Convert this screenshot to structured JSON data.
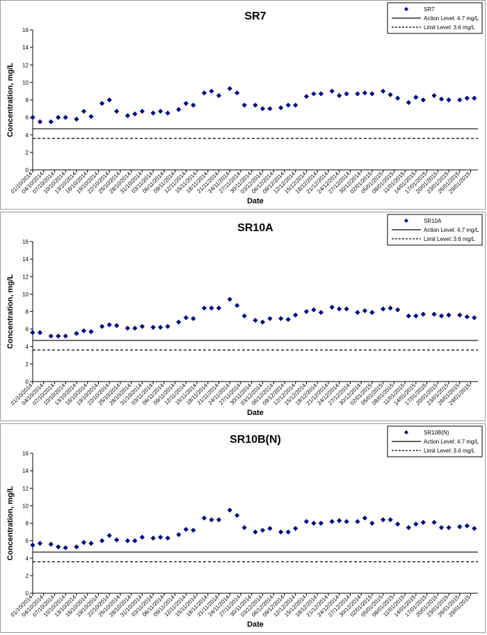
{
  "chart_data": [
    {
      "type": "scatter",
      "title": "SR7",
      "xlabel": "Date",
      "ylabel": "Concentration, mg/L",
      "ylim": [
        0,
        16
      ],
      "yticks": [
        "0",
        "2",
        "4",
        "6",
        "8",
        "10",
        "12",
        "14",
        "16"
      ],
      "xtick_labels": [
        "01/10/2014",
        "04/10/2014",
        "07/10/2014",
        "10/10/2014",
        "13/10/2014",
        "16/10/2014",
        "19/10/2014",
        "22/10/2014",
        "25/10/2014",
        "28/10/2014",
        "31/10/2014",
        "03/11/2014",
        "06/11/2014",
        "09/11/2014",
        "12/11/2014",
        "15/11/2014",
        "18/11/2014",
        "21/11/2014",
        "24/11/2014",
        "27/11/2014",
        "30/11/2014",
        "03/12/2014",
        "06/12/2014",
        "09/12/2014",
        "12/12/2014",
        "15/12/2014",
        "18/12/2014",
        "21/12/2014",
        "24/12/2014",
        "27/12/2014",
        "30/12/2014",
        "02/01/2015",
        "05/01/2015",
        "08/01/2015",
        "11/01/2015",
        "14/01/2015",
        "17/01/2015",
        "20/01/2015",
        "23/01/2015",
        "26/01/2015",
        "29/01/2015"
      ],
      "points": [
        [
          "01/10/2014",
          6.0
        ],
        [
          "03/10/2014",
          5.5
        ],
        [
          "06/10/2014",
          5.5
        ],
        [
          "08/10/2014",
          6.0
        ],
        [
          "10/10/2014",
          6.0
        ],
        [
          "13/10/2014",
          5.8
        ],
        [
          "15/10/2014",
          6.7
        ],
        [
          "17/10/2014",
          6.1
        ],
        [
          "20/10/2014",
          7.6
        ],
        [
          "22/10/2014",
          8.0
        ],
        [
          "24/10/2014",
          6.7
        ],
        [
          "27/10/2014",
          6.2
        ],
        [
          "29/10/2014",
          6.4
        ],
        [
          "31/10/2014",
          6.7
        ],
        [
          "03/11/2014",
          6.5
        ],
        [
          "05/11/2014",
          6.7
        ],
        [
          "07/11/2014",
          6.5
        ],
        [
          "10/11/2014",
          6.9
        ],
        [
          "12/11/2014",
          7.6
        ],
        [
          "14/11/2014",
          7.4
        ],
        [
          "17/11/2014",
          8.8
        ],
        [
          "19/11/2014",
          9.0
        ],
        [
          "21/11/2014",
          8.5
        ],
        [
          "24/11/2014",
          9.3
        ],
        [
          "26/11/2014",
          8.8
        ],
        [
          "28/11/2014",
          7.4
        ],
        [
          "01/12/2014",
          7.4
        ],
        [
          "03/12/2014",
          7.0
        ],
        [
          "05/12/2014",
          7.0
        ],
        [
          "08/12/2014",
          7.1
        ],
        [
          "10/12/2014",
          7.4
        ],
        [
          "12/12/2014",
          7.4
        ],
        [
          "15/12/2014",
          8.4
        ],
        [
          "17/12/2014",
          8.7
        ],
        [
          "19/12/2014",
          8.7
        ],
        [
          "22/12/2014",
          9.0
        ],
        [
          "24/12/2014",
          8.5
        ],
        [
          "26/12/2014",
          8.7
        ],
        [
          "29/12/2014",
          8.7
        ],
        [
          "31/12/2014",
          8.8
        ],
        [
          "02/01/2015",
          8.7
        ],
        [
          "05/01/2015",
          9.0
        ],
        [
          "07/01/2015",
          8.6
        ],
        [
          "09/01/2015",
          8.2
        ],
        [
          "12/01/2015",
          7.7
        ],
        [
          "14/01/2015",
          8.3
        ],
        [
          "16/01/2015",
          8.0
        ],
        [
          "19/01/2015",
          8.5
        ],
        [
          "21/01/2015",
          8.1
        ],
        [
          "23/01/2015",
          8.0
        ],
        [
          "26/01/2015",
          8.0
        ],
        [
          "28/01/2015",
          8.2
        ],
        [
          "30/01/2015",
          8.2
        ]
      ],
      "series": [
        {
          "name": "SR7",
          "kind": "marker",
          "color": "#00007f"
        },
        {
          "name": "Action Level: 4.7 mg/L",
          "kind": "solid",
          "value": 4.7,
          "color": "#000000"
        },
        {
          "name": "Limit Level: 3.6 mg/L",
          "kind": "dashed",
          "value": 3.6,
          "color": "#000000"
        }
      ],
      "legend": "top-right",
      "grid": false
    },
    {
      "type": "scatter",
      "title": "SR10A",
      "xlabel": "Date",
      "ylabel": "Concentration, mg/L",
      "ylim": [
        0,
        16
      ],
      "yticks": [
        "0",
        "2",
        "4",
        "6",
        "8",
        "10",
        "12",
        "14",
        "16"
      ],
      "xtick_labels": [
        "01/10/2014",
        "04/10/2014",
        "07/10/2014",
        "10/10/2014",
        "13/10/2014",
        "16/10/2014",
        "19/10/2014",
        "22/10/2014",
        "25/10/2014",
        "28/10/2014",
        "31/10/2014",
        "03/11/2014",
        "06/11/2014",
        "09/11/2014",
        "12/11/2014",
        "15/11/2014",
        "18/11/2014",
        "21/11/2014",
        "24/11/2014",
        "27/11/2014",
        "30/11/2014",
        "03/12/2014",
        "06/12/2014",
        "09/12/2014",
        "12/12/2014",
        "15/12/2014",
        "18/12/2014",
        "21/12/2014",
        "24/12/2014",
        "27/12/2014",
        "30/12/2014",
        "02/01/2015",
        "05/01/2015",
        "08/01/2015",
        "11/01/2015",
        "14/01/2015",
        "17/01/2015",
        "20/01/2015",
        "23/01/2015",
        "26/01/2015",
        "29/01/2015"
      ],
      "points": [
        [
          "01/10/2014",
          5.6
        ],
        [
          "03/10/2014",
          5.6
        ],
        [
          "06/10/2014",
          5.2
        ],
        [
          "08/10/2014",
          5.2
        ],
        [
          "10/10/2014",
          5.2
        ],
        [
          "13/10/2014",
          5.5
        ],
        [
          "15/10/2014",
          5.8
        ],
        [
          "17/10/2014",
          5.7
        ],
        [
          "20/10/2014",
          6.3
        ],
        [
          "22/10/2014",
          6.5
        ],
        [
          "24/10/2014",
          6.4
        ],
        [
          "27/10/2014",
          6.1
        ],
        [
          "29/10/2014",
          6.1
        ],
        [
          "31/10/2014",
          6.3
        ],
        [
          "03/11/2014",
          6.2
        ],
        [
          "05/11/2014",
          6.2
        ],
        [
          "07/11/2014",
          6.3
        ],
        [
          "10/11/2014",
          6.8
        ],
        [
          "12/11/2014",
          7.3
        ],
        [
          "14/11/2014",
          7.2
        ],
        [
          "17/11/2014",
          8.4
        ],
        [
          "19/11/2014",
          8.4
        ],
        [
          "21/11/2014",
          8.4
        ],
        [
          "24/11/2014",
          9.4
        ],
        [
          "26/11/2014",
          8.7
        ],
        [
          "28/11/2014",
          7.5
        ],
        [
          "01/12/2014",
          7.0
        ],
        [
          "03/12/2014",
          6.8
        ],
        [
          "05/12/2014",
          7.2
        ],
        [
          "08/12/2014",
          7.2
        ],
        [
          "10/12/2014",
          7.1
        ],
        [
          "12/12/2014",
          7.6
        ],
        [
          "15/12/2014",
          8.0
        ],
        [
          "17/12/2014",
          8.2
        ],
        [
          "19/12/2014",
          7.9
        ],
        [
          "22/12/2014",
          8.5
        ],
        [
          "24/12/2014",
          8.3
        ],
        [
          "26/12/2014",
          8.3
        ],
        [
          "29/12/2014",
          7.9
        ],
        [
          "31/12/2014",
          8.1
        ],
        [
          "02/01/2015",
          7.9
        ],
        [
          "05/01/2015",
          8.3
        ],
        [
          "07/01/2015",
          8.4
        ],
        [
          "09/01/2015",
          8.2
        ],
        [
          "12/01/2015",
          7.5
        ],
        [
          "14/01/2015",
          7.5
        ],
        [
          "16/01/2015",
          7.7
        ],
        [
          "19/01/2015",
          7.7
        ],
        [
          "21/01/2015",
          7.5
        ],
        [
          "23/01/2015",
          7.6
        ],
        [
          "26/01/2015",
          7.6
        ],
        [
          "28/01/2015",
          7.4
        ],
        [
          "30/01/2015",
          7.3
        ]
      ],
      "series": [
        {
          "name": "SR10A",
          "kind": "marker",
          "color": "#00007f"
        },
        {
          "name": "Action Level: 4.7 mg/L",
          "kind": "solid",
          "value": 4.7,
          "color": "#000000"
        },
        {
          "name": "Limit Level: 3.6 mg/L",
          "kind": "dashed",
          "value": 3.6,
          "color": "#000000"
        }
      ],
      "legend": "top-right",
      "grid": false
    },
    {
      "type": "scatter",
      "title": "SR10B(N)",
      "xlabel": "Date",
      "ylabel": "Concentration, mg/L",
      "ylim": [
        0,
        16
      ],
      "yticks": [
        "0",
        "2",
        "4",
        "6",
        "8",
        "10",
        "12",
        "14",
        "16"
      ],
      "xtick_labels": [
        "01/10/2014",
        "04/10/2014",
        "07/10/2014",
        "10/10/2014",
        "13/10/2014",
        "16/10/2014",
        "19/10/2014",
        "22/10/2014",
        "25/10/2014",
        "28/10/2014",
        "31/10/2014",
        "03/11/2014",
        "06/11/2014",
        "09/11/2014",
        "12/11/2014",
        "15/11/2014",
        "18/11/2014",
        "21/11/2014",
        "24/11/2014",
        "27/11/2014",
        "30/11/2014",
        "03/12/2014",
        "06/12/2014",
        "09/12/2014",
        "12/12/2014",
        "15/12/2014",
        "18/12/2014",
        "21/12/2014",
        "24/12/2014",
        "27/12/2014",
        "30/12/2014",
        "02/01/2015",
        "05/01/2015",
        "08/01/2015",
        "11/01/2015",
        "14/01/2015",
        "17/01/2015",
        "20/01/2015",
        "23/01/2015",
        "26/01/2015",
        "29/01/2015"
      ],
      "points": [
        [
          "01/10/2014",
          5.5
        ],
        [
          "03/10/2014",
          5.7
        ],
        [
          "06/10/2014",
          5.6
        ],
        [
          "08/10/2014",
          5.3
        ],
        [
          "10/10/2014",
          5.2
        ],
        [
          "13/10/2014",
          5.3
        ],
        [
          "15/10/2014",
          5.8
        ],
        [
          "17/10/2014",
          5.7
        ],
        [
          "20/10/2014",
          6.0
        ],
        [
          "22/10/2014",
          6.6
        ],
        [
          "24/10/2014",
          6.1
        ],
        [
          "27/10/2014",
          6.0
        ],
        [
          "29/10/2014",
          6.0
        ],
        [
          "31/10/2014",
          6.4
        ],
        [
          "03/11/2014",
          6.3
        ],
        [
          "05/11/2014",
          6.4
        ],
        [
          "07/11/2014",
          6.3
        ],
        [
          "10/11/2014",
          6.7
        ],
        [
          "12/11/2014",
          7.3
        ],
        [
          "14/11/2014",
          7.2
        ],
        [
          "17/11/2014",
          8.6
        ],
        [
          "19/11/2014",
          8.4
        ],
        [
          "21/11/2014",
          8.4
        ],
        [
          "24/11/2014",
          9.5
        ],
        [
          "26/11/2014",
          8.9
        ],
        [
          "28/11/2014",
          7.5
        ],
        [
          "01/12/2014",
          7.0
        ],
        [
          "03/12/2014",
          7.2
        ],
        [
          "05/12/2014",
          7.4
        ],
        [
          "08/12/2014",
          7.0
        ],
        [
          "10/12/2014",
          7.0
        ],
        [
          "12/12/2014",
          7.4
        ],
        [
          "15/12/2014",
          8.2
        ],
        [
          "17/12/2014",
          8.0
        ],
        [
          "19/12/2014",
          8.0
        ],
        [
          "22/12/2014",
          8.2
        ],
        [
          "24/12/2014",
          8.3
        ],
        [
          "26/12/2014",
          8.2
        ],
        [
          "29/12/2014",
          8.2
        ],
        [
          "31/12/2014",
          8.6
        ],
        [
          "02/01/2015",
          8.0
        ],
        [
          "05/01/2015",
          8.4
        ],
        [
          "07/01/2015",
          8.4
        ],
        [
          "09/01/2015",
          7.9
        ],
        [
          "12/01/2015",
          7.5
        ],
        [
          "14/01/2015",
          7.9
        ],
        [
          "16/01/2015",
          8.1
        ],
        [
          "19/01/2015",
          8.1
        ],
        [
          "21/01/2015",
          7.5
        ],
        [
          "23/01/2015",
          7.5
        ],
        [
          "26/01/2015",
          7.6
        ],
        [
          "28/01/2015",
          7.7
        ],
        [
          "30/01/2015",
          7.4
        ]
      ],
      "series": [
        {
          "name": "SR10B(N)",
          "kind": "marker",
          "color": "#00007f"
        },
        {
          "name": "Action Level: 4.7 mg/L",
          "kind": "solid",
          "value": 4.7,
          "color": "#000000"
        },
        {
          "name": "Limit Level: 3.6 mg/L",
          "kind": "dashed",
          "value": 3.6,
          "color": "#000000"
        }
      ],
      "legend": "top-right",
      "grid": false
    }
  ]
}
